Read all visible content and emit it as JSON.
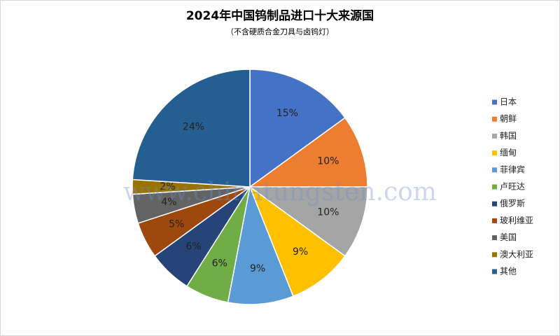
{
  "chart_data": {
    "type": "pie",
    "title": "2024年中国钨制品进口十大来源国",
    "subtitle": "（不含硬质合金刀具与卤钨灯）",
    "watermark": "www.chinatungsten.com",
    "categories": [
      "日本",
      "朝鲜",
      "韩国",
      "缅甸",
      "菲律宾",
      "卢旺达",
      "俄罗斯",
      "玻利维亚",
      "美国",
      "澳大利亚",
      "其他"
    ],
    "values": [
      15,
      10,
      10,
      9,
      9,
      6,
      6,
      5,
      4,
      2,
      24
    ],
    "value_labels": [
      "15%",
      "10%",
      "10%",
      "9%",
      "9%",
      "6%",
      "6%",
      "5%",
      "4%",
      "2%",
      "24%"
    ],
    "colors": [
      "#4472c4",
      "#ed7d31",
      "#a5a5a5",
      "#ffc000",
      "#5b9bd5",
      "#70ad47",
      "#264478",
      "#9e480e",
      "#636363",
      "#997300",
      "#255e91"
    ],
    "legend": "right"
  }
}
